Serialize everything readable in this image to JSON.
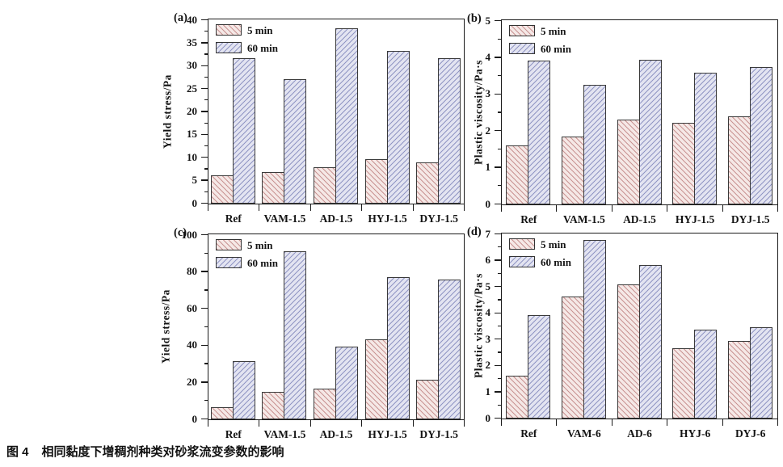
{
  "figure": {
    "caption_prefix": "图 4",
    "caption_text": "相同黏度下增稠剂种类对砂浆流变参数的影响"
  },
  "legend": {
    "series1_label": "5 min",
    "series2_label": "60 min",
    "position": "top-left"
  },
  "colors": {
    "bar1_bg": "#f5e8e6",
    "bar1_hatch": "#c99493",
    "bar2_bg": "#e3e4f1",
    "bar2_hatch": "#9196c4",
    "axis": "#1a1a1a",
    "text": "#141414"
  },
  "chart_data": [
    {
      "id": "a",
      "panel_label": "(a)",
      "type": "bar",
      "ylabel": "Yield stress/Pa",
      "xlabel": "",
      "ylim": [
        0,
        40
      ],
      "ytick_step": 5,
      "yminor_step": 2.5,
      "grid": false,
      "legend_position": "top-left",
      "categories": [
        "Ref",
        "VAM-1.5",
        "AD-1.5",
        "HYJ-1.5",
        "DYJ-1.5"
      ],
      "series": [
        {
          "name": "5 min",
          "values": [
            6.0,
            6.7,
            7.9,
            9.6,
            8.9
          ]
        },
        {
          "name": "60 min",
          "values": [
            31.7,
            27.0,
            38.1,
            33.2,
            31.6
          ]
        }
      ]
    },
    {
      "id": "b",
      "panel_label": "(b)",
      "type": "bar",
      "ylabel": "Plastic viscosity/Pa·s",
      "xlabel": "",
      "ylim": [
        0,
        5
      ],
      "ytick_step": 1,
      "yminor_step": 0.5,
      "grid": false,
      "legend_position": "top-left",
      "categories": [
        "Ref",
        "VAM-1.5",
        "AD-1.5",
        "HYJ-1.5",
        "DYJ-1.5"
      ],
      "series": [
        {
          "name": "5 min",
          "values": [
            1.6,
            1.83,
            2.3,
            2.21,
            2.39
          ]
        },
        {
          "name": "60 min",
          "values": [
            3.9,
            3.24,
            3.94,
            3.59,
            3.73
          ]
        }
      ]
    },
    {
      "id": "c",
      "panel_label": "(c)",
      "type": "bar",
      "ylabel": "Yield stress/Pa",
      "xlabel": "",
      "ylim": [
        0,
        100
      ],
      "ytick_step": 20,
      "yminor_step": 10,
      "grid": false,
      "legend_position": "top-left",
      "categories": [
        "Ref",
        "VAM-1.5",
        "AD-1.5",
        "HYJ-1.5",
        "DYJ-1.5"
      ],
      "series": [
        {
          "name": "5 min",
          "values": [
            6.2,
            14.9,
            16.6,
            43.3,
            21.2
          ]
        },
        {
          "name": "60 min",
          "values": [
            31.5,
            90.9,
            39.4,
            76.8,
            75.8
          ]
        }
      ]
    },
    {
      "id": "d",
      "panel_label": "(d)",
      "type": "bar",
      "ylabel": "Plastic viscosity/Pa·s",
      "xlabel": "",
      "ylim": [
        0,
        7
      ],
      "ytick_step": 1,
      "yminor_step": 0.5,
      "grid": false,
      "legend_position": "top-left",
      "categories": [
        "Ref",
        "VAM-6",
        "AD-6",
        "HYJ-6",
        "DYJ-6"
      ],
      "series": [
        {
          "name": "5 min",
          "values": [
            1.61,
            4.62,
            5.08,
            2.66,
            2.92
          ]
        },
        {
          "name": "60 min",
          "values": [
            3.9,
            6.76,
            5.83,
            3.36,
            3.46
          ]
        }
      ]
    }
  ]
}
